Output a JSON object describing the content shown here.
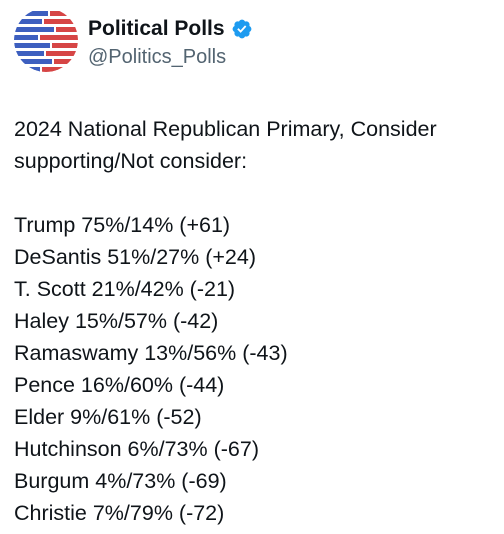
{
  "author": {
    "display_name": "Political Polls",
    "handle": "@Politics_Polls",
    "verified": true,
    "verified_color": "#1d9bf0"
  },
  "avatar_colors": {
    "red": "#d64545",
    "blue": "#3d5fbf"
  },
  "tweet": {
    "heading": "2024 National Republican Primary, Consider supporting/Not consider:",
    "results": [
      "Trump 75%/14% (+61)",
      "DeSantis 51%/27% (+24)",
      "T. Scott 21%/42% (-21)",
      "Haley 15%/57% (-42)",
      "Ramaswamy 13%/56% (-43)",
      "Pence 16%/60% (-44)",
      "Elder 9%/61% (-52)",
      "Hutchinson 6%/73% (-67)",
      "Burgum 4%/73% (-69)",
      "Christie 7%/79% (-72)"
    ]
  }
}
